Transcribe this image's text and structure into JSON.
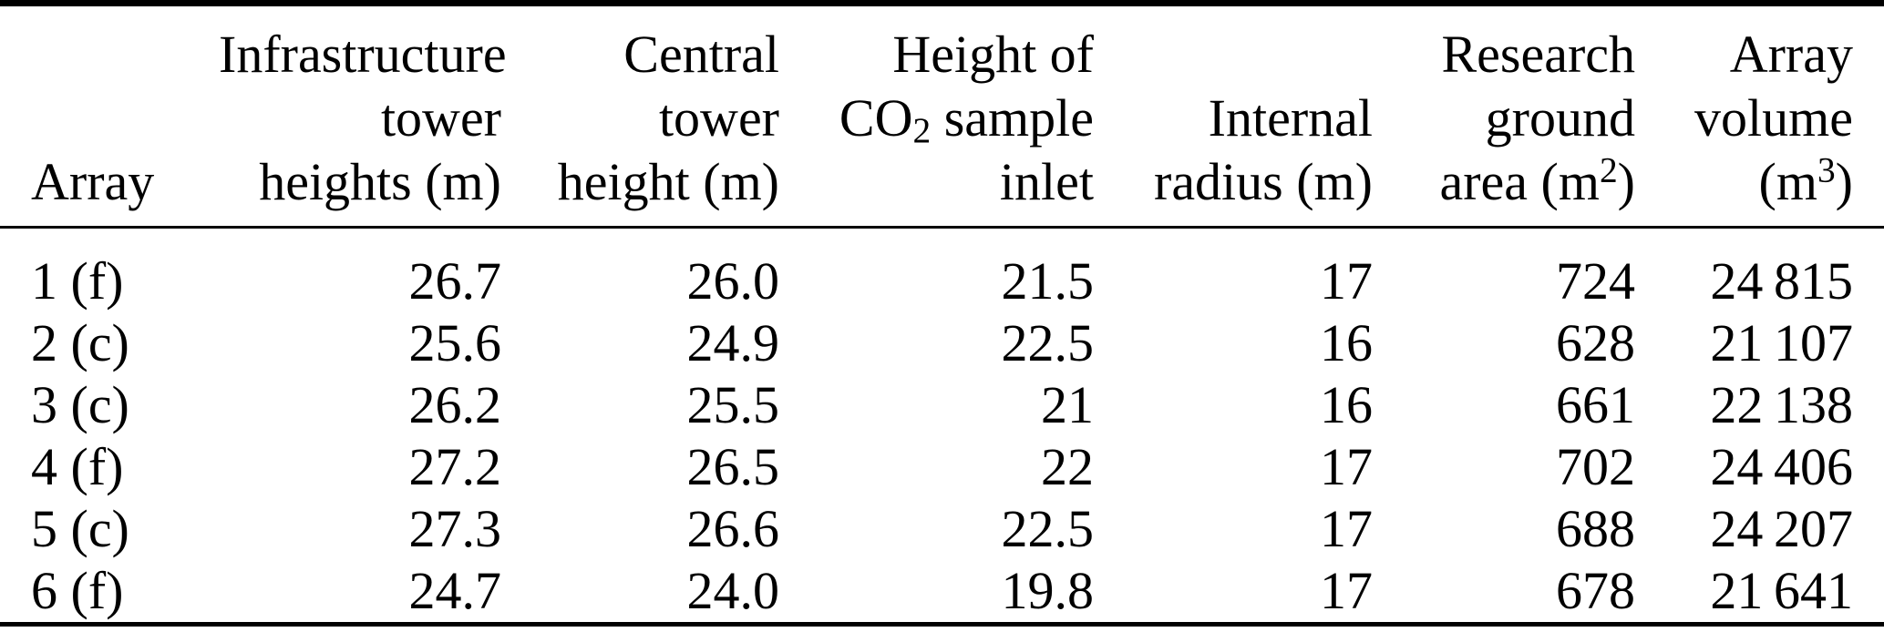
{
  "table": {
    "header": {
      "array": {
        "line3": "Array"
      },
      "infra": {
        "line1": "Infrastructure",
        "line2": "tower",
        "line3": "heights (m)"
      },
      "central": {
        "line1": "Central",
        "line2": "tower",
        "line3": "height (m)"
      },
      "inlet": {
        "line1": "Height of",
        "line2_base": "CO",
        "line2_sub": "2",
        "line2_rest": " sample",
        "line3": "inlet"
      },
      "radius": {
        "line2": "Internal",
        "line3": "radius (m)"
      },
      "area": {
        "line1": "Research",
        "line2": "ground",
        "line3_pre": "area (m",
        "line3_sup": "2",
        "line3_post": ")"
      },
      "volume": {
        "line1": "Array",
        "line2": "volume",
        "line3_pre": "(m",
        "line3_sup": "3",
        "line3_post": ")"
      }
    },
    "rows": [
      {
        "array": "1 (f)",
        "infra": "26.7",
        "central": "26.0",
        "inlet": "21.5",
        "radius": "17",
        "area": "724",
        "volume": "24 815"
      },
      {
        "array": "2 (c)",
        "infra": "25.6",
        "central": "24.9",
        "inlet": "22.5",
        "radius": "16",
        "area": "628",
        "volume": "21 107"
      },
      {
        "array": "3 (c)",
        "infra": "26.2",
        "central": "25.5",
        "inlet": "21",
        "radius": "16",
        "area": "661",
        "volume": "22 138"
      },
      {
        "array": "4 (f)",
        "infra": "27.2",
        "central": "26.5",
        "inlet": "22",
        "radius": "17",
        "area": "702",
        "volume": "24 406"
      },
      {
        "array": "5 (c)",
        "infra": "27.3",
        "central": "26.6",
        "inlet": "22.5",
        "radius": "17",
        "area": "688",
        "volume": "24 207"
      },
      {
        "array": "6 (f)",
        "infra": "24.7",
        "central": "24.0",
        "inlet": "19.8",
        "radius": "17",
        "area": "678",
        "volume": "21 641"
      }
    ],
    "colors": {
      "text": "#000000",
      "background": "#ffffff",
      "rule": "#000000"
    }
  }
}
